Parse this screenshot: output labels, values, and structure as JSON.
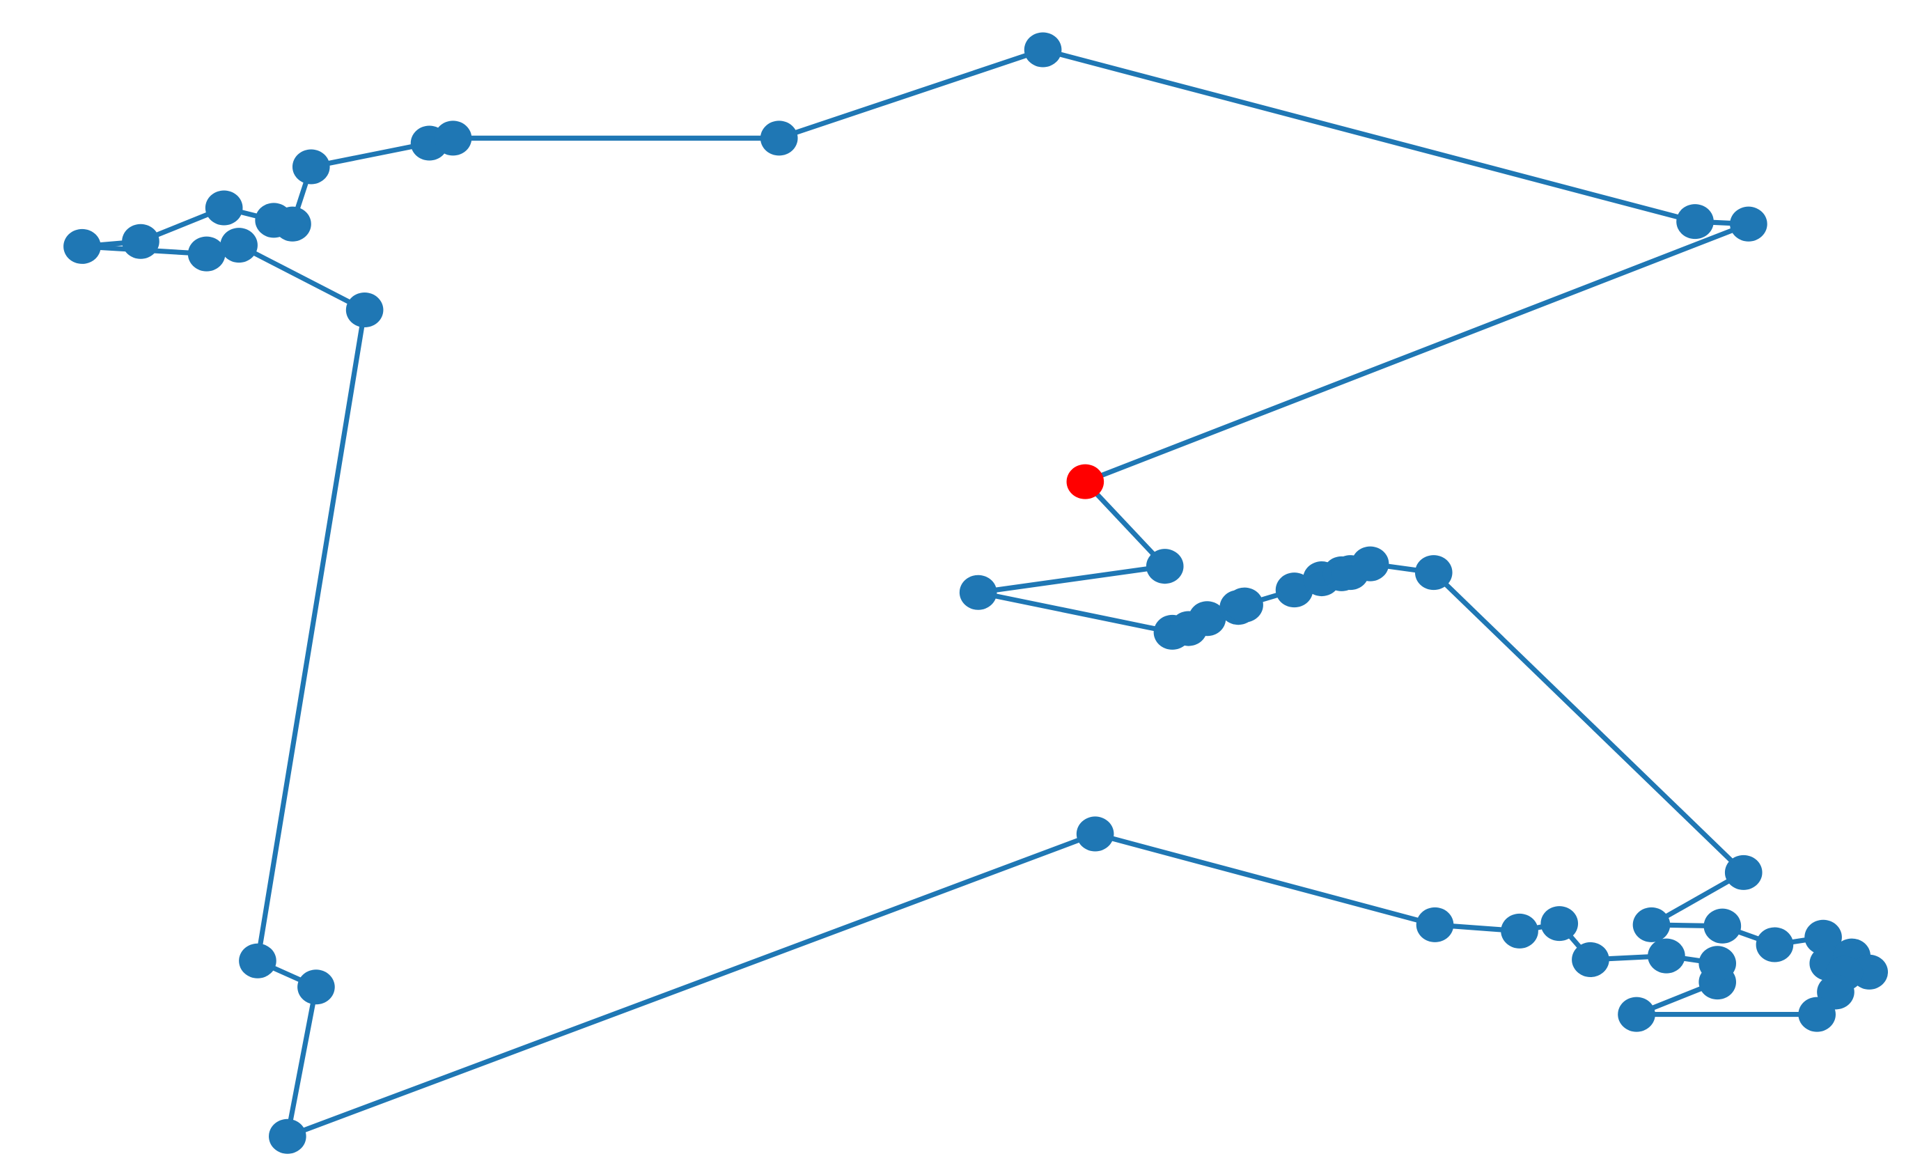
{
  "chart_data": {
    "type": "line",
    "title": "",
    "xlabel": "",
    "ylabel": "",
    "axes_visible": false,
    "grid": false,
    "legend": "none",
    "line_color": "#1f77b4",
    "marker_color": "#1f77b4",
    "start_marker_color": "#ff0000",
    "xlim": [
      0,
      1550
    ],
    "ylim": [
      0,
      940
    ],
    "start_index": 0,
    "points": [
      [
        872,
        553
      ],
      [
        936,
        485
      ],
      [
        786,
        464
      ],
      [
        942,
        432
      ],
      [
        955,
        435
      ],
      [
        970,
        443
      ],
      [
        995,
        452
      ],
      [
        1000,
        454
      ],
      [
        1040,
        466
      ],
      [
        1062,
        475
      ],
      [
        1078,
        479
      ],
      [
        1085,
        480
      ],
      [
        1101,
        487
      ],
      [
        1152,
        480
      ],
      [
        1401,
        239
      ],
      [
        1327,
        197
      ],
      [
        1384,
        196
      ],
      [
        1426,
        181
      ],
      [
        1465,
        187
      ],
      [
        1469,
        166
      ],
      [
        1488,
        172
      ],
      [
        1502,
        159
      ],
      [
        1482,
        158
      ],
      [
        1475,
        143
      ],
      [
        1460,
        125
      ],
      [
        1315,
        125
      ],
      [
        1380,
        151
      ],
      [
        1380,
        166
      ],
      [
        1339,
        172
      ],
      [
        1278,
        169
      ],
      [
        1253,
        198
      ],
      [
        1221,
        192
      ],
      [
        1153,
        197
      ],
      [
        880,
        270
      ],
      [
        231,
        27
      ],
      [
        254,
        147
      ],
      [
        207,
        168
      ],
      [
        293,
        691
      ],
      [
        192,
        743
      ],
      [
        166,
        736
      ],
      [
        66,
        742
      ],
      [
        113,
        746
      ],
      [
        180,
        773
      ],
      [
        220,
        763
      ],
      [
        235,
        760
      ],
      [
        250,
        806
      ],
      [
        345,
        825
      ],
      [
        364,
        829
      ],
      [
        626,
        829
      ],
      [
        838,
        900
      ],
      [
        1362,
        762
      ],
      [
        1405,
        760
      ],
      [
        872,
        553
      ]
    ]
  }
}
